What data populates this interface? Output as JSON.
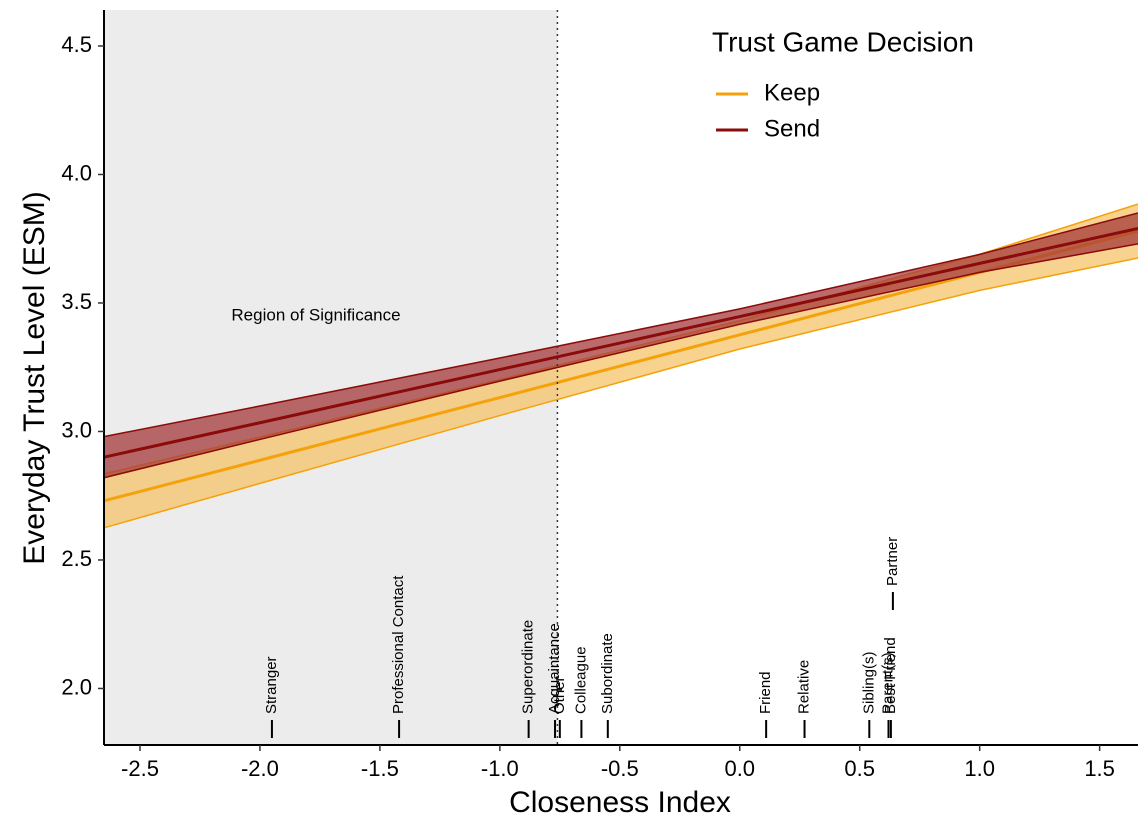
{
  "chart_data": {
    "type": "line",
    "xlabel": "Closeness Index",
    "ylabel": "Everyday Trust Level (ESM)",
    "xlim": [
      -2.65,
      1.66
    ],
    "ylim": [
      1.78,
      4.64
    ],
    "xticks": [
      {
        "value": -2.5,
        "label": "-2.5"
      },
      {
        "value": -2,
        "label": "-2.0"
      },
      {
        "value": -1.5,
        "label": "-1.5"
      },
      {
        "value": -1,
        "label": "-1.0"
      },
      {
        "value": -0.5,
        "label": "-0.5"
      },
      {
        "value": 0,
        "label": "0.0"
      },
      {
        "value": 0.5,
        "label": "0.5"
      },
      {
        "value": 1,
        "label": "1.0"
      },
      {
        "value": 1.5,
        "label": "1.5"
      }
    ],
    "yticks": [
      {
        "value": 2,
        "label": "2.0"
      },
      2.5,
      {
        "value": 3,
        "label": "3.0"
      },
      3.5,
      {
        "value": 4,
        "label": "4.0"
      },
      4.5
    ],
    "grid": false,
    "legend_title": "Trust Game Decision",
    "legend_position": "top-right",
    "x": [
      -2.65,
      -2,
      -1,
      0,
      1,
      1.66
    ],
    "series": [
      {
        "name": "Keep",
        "color": "#f5a20a",
        "band_color": "#f6c36a",
        "values": [
          2.73,
          2.888,
          3.132,
          3.376,
          3.619,
          3.78
        ],
        "lower": [
          2.625,
          2.798,
          3.062,
          3.321,
          3.549,
          3.675
        ],
        "upper": [
          2.835,
          2.978,
          3.202,
          3.431,
          3.689,
          3.885
        ]
      },
      {
        "name": "Send",
        "color": "#8b0a0a",
        "band_color": "#a43a3a",
        "values": [
          2.9,
          3.034,
          3.241,
          3.447,
          3.654,
          3.79
        ],
        "lower": [
          2.82,
          2.969,
          3.196,
          3.417,
          3.619,
          3.73
        ],
        "upper": [
          2.98,
          3.099,
          3.286,
          3.477,
          3.689,
          3.85
        ]
      }
    ],
    "significance_boundary": -0.76,
    "region_label": "Region of Significance",
    "markers": {
      "labels": [
        "Stranger",
        "Professional Contact",
        "Superordinate",
        "Acquaintance",
        "Other",
        "Colleague",
        "Subordinate",
        "Friend",
        "Relative",
        "Sibling(s)",
        "Parent(s)",
        "Best Friend",
        "Partner"
      ],
      "x": [
        -1.95,
        -1.42,
        -0.88,
        -0.77,
        -0.75,
        -0.66,
        -0.55,
        0.11,
        0.27,
        0.54,
        0.62,
        0.63,
        0.63
      ]
    }
  }
}
